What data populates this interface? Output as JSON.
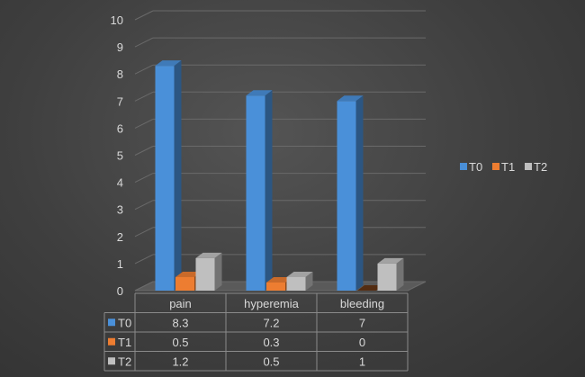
{
  "chart_data": {
    "type": "bar",
    "title": "",
    "xlabel": "",
    "ylabel": "",
    "ylim": [
      0,
      10
    ],
    "yticks": [
      "0",
      "1",
      "2",
      "3",
      "4",
      "5",
      "6",
      "7",
      "8",
      "9",
      "10"
    ],
    "categories": [
      "pain",
      "hyperemia",
      "bleeding"
    ],
    "series": [
      {
        "name": "T0",
        "values": [
          8.3,
          7.2,
          7
        ],
        "labels": [
          "8.3",
          "7.2",
          "7"
        ],
        "color": "#4a90d9"
      },
      {
        "name": "T1",
        "values": [
          0.5,
          0.3,
          0
        ],
        "labels": [
          "0.5",
          "0.3",
          "0"
        ],
        "color": "#ed7d31"
      },
      {
        "name": "T2",
        "values": [
          1.2,
          0.5,
          1
        ],
        "labels": [
          "1.2",
          "0.5",
          "1"
        ],
        "color": "#bfbfbf"
      }
    ],
    "legend_position": "right",
    "data_table": true,
    "grid": true
  }
}
